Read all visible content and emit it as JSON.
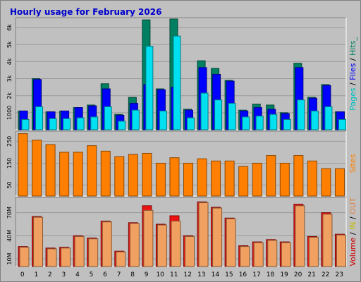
{
  "chart_data": {
    "type": "bar",
    "title": "Hourly usage for February 2026",
    "categories": [
      "0",
      "1",
      "2",
      "3",
      "4",
      "5",
      "6",
      "7",
      "8",
      "9",
      "10",
      "11",
      "12",
      "13",
      "14",
      "15",
      "16",
      "17",
      "18",
      "19",
      "20",
      "21",
      "22",
      "23"
    ],
    "panels": [
      {
        "id": "requests",
        "ylim": [
          0,
          6500
        ],
        "yticks": [
          {
            "value": 1000,
            "label": "1000"
          },
          {
            "value": 2000,
            "label": "2k"
          },
          {
            "value": 3000,
            "label": "3k"
          },
          {
            "value": 4000,
            "label": "4k"
          },
          {
            "value": 5000,
            "label": "5k"
          },
          {
            "value": 6000,
            "label": "6k"
          }
        ],
        "side_label": [
          {
            "text": "Pages",
            "color": "#00c0c0"
          },
          {
            "text": " / ",
            "color": "#000000"
          },
          {
            "text": "Files",
            "color": "#0000ff"
          },
          {
            "text": " / ",
            "color": "#000000"
          },
          {
            "text": "Hits",
            "color": "#008060"
          },
          {
            "text": "_",
            "color": "#008060"
          }
        ],
        "series": [
          {
            "name": "Hits",
            "color": "#008060",
            "values": [
              1100,
              3000,
              1050,
              1100,
              1300,
              1450,
              2700,
              900,
              1900,
              6450,
              2400,
              6500,
              1200,
              4050,
              3600,
              2900,
              1150,
              1500,
              1450,
              1000,
              3900,
              1900,
              2650,
              1050
            ]
          },
          {
            "name": "Files",
            "color": "#0000ff",
            "values": [
              1100,
              2950,
              1050,
              1100,
              1300,
              1400,
              2400,
              850,
              1550,
              2650,
              2350,
              2500,
              1150,
              3650,
              3250,
              2850,
              1100,
              1300,
              1200,
              950,
              3650,
              1850,
              2600,
              1050
            ]
          },
          {
            "name": "Pages",
            "color": "#00e0f0",
            "values": [
              600,
              1350,
              650,
              650,
              700,
              750,
              1350,
              500,
              1150,
              4900,
              1100,
              5500,
              700,
              2150,
              1750,
              1550,
              750,
              800,
              900,
              600,
              1750,
              1100,
              1350,
              600
            ]
          }
        ]
      },
      {
        "id": "visits",
        "ylim": [
          0,
          290
        ],
        "yticks": [
          {
            "value": 50,
            "label": "50"
          },
          {
            "value": 150,
            "label": "150"
          },
          {
            "value": 250,
            "label": "250"
          }
        ],
        "side_label": [
          {
            "text": "Sites",
            "color": "#ff8000"
          }
        ],
        "series": [
          {
            "name": "Sites",
            "color": "#ff8000",
            "values": [
              285,
              255,
              235,
              200,
              200,
              230,
              205,
              180,
              190,
              195,
              150,
              175,
              150,
              170,
              160,
              160,
              135,
              150,
              185,
              150,
              185,
              160,
              125,
              125
            ]
          }
        ]
      },
      {
        "id": "volume",
        "ylim": [
          0,
          88
        ],
        "yticks": [
          {
            "value": 10,
            "label": "10M"
          },
          {
            "value": 40,
            "label": "40M"
          },
          {
            "value": 70,
            "label": "70M"
          }
        ],
        "side_label": [
          {
            "text": "Volume",
            "color": "#cc0000"
          },
          {
            "text": " / ",
            "color": "#000000"
          },
          {
            "text": "IN",
            "color": "#c0c000"
          },
          {
            "text": " / ",
            "color": "#000000"
          },
          {
            "text": "OUT",
            "color": "#e08040"
          }
        ],
        "series": [
          {
            "name": "Volume",
            "color": "#ee1111",
            "values": [
              26,
              65,
              24,
              25,
              40,
              37,
              59,
              20,
              57,
              79,
              55,
              66,
              40,
              84,
              77,
              63,
              27,
              32,
              35,
              32,
              81,
              39,
              70,
              42
            ]
          },
          {
            "name": "OUT",
            "color": "#f0a060",
            "values": [
              25,
              64,
              23,
              24,
              39,
              36,
              58,
              19,
              56,
              73,
              54,
              59,
              39,
              83,
              76,
              62,
              26,
              31,
              34,
              31,
              79,
              38,
              68,
              41
            ]
          }
        ]
      }
    ]
  }
}
